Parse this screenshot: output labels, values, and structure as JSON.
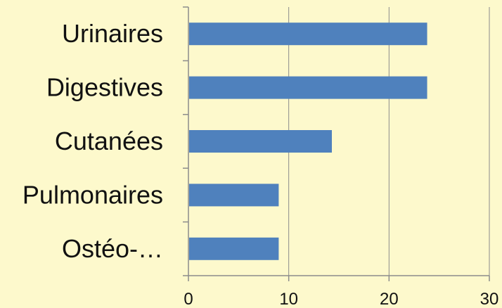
{
  "chart_data": {
    "type": "bar",
    "orientation": "horizontal",
    "categories": [
      "Urinaires",
      "Digestives",
      "Cutanées",
      "Pulmonaires",
      "Ostéo-…"
    ],
    "values": [
      23.8,
      23.8,
      14.3,
      9.0,
      9.0
    ],
    "xlim": [
      0,
      30
    ],
    "xticks": [
      0,
      10,
      20,
      30
    ],
    "grid": "vertical",
    "legend": "none",
    "title": "",
    "xlabel": "",
    "ylabel": ""
  },
  "colors": {
    "background": "#FDF9CC",
    "bar": "#4F81BD",
    "gridline": "#8C8C8C",
    "axis": "#8C8C8C",
    "text": "#111111"
  }
}
